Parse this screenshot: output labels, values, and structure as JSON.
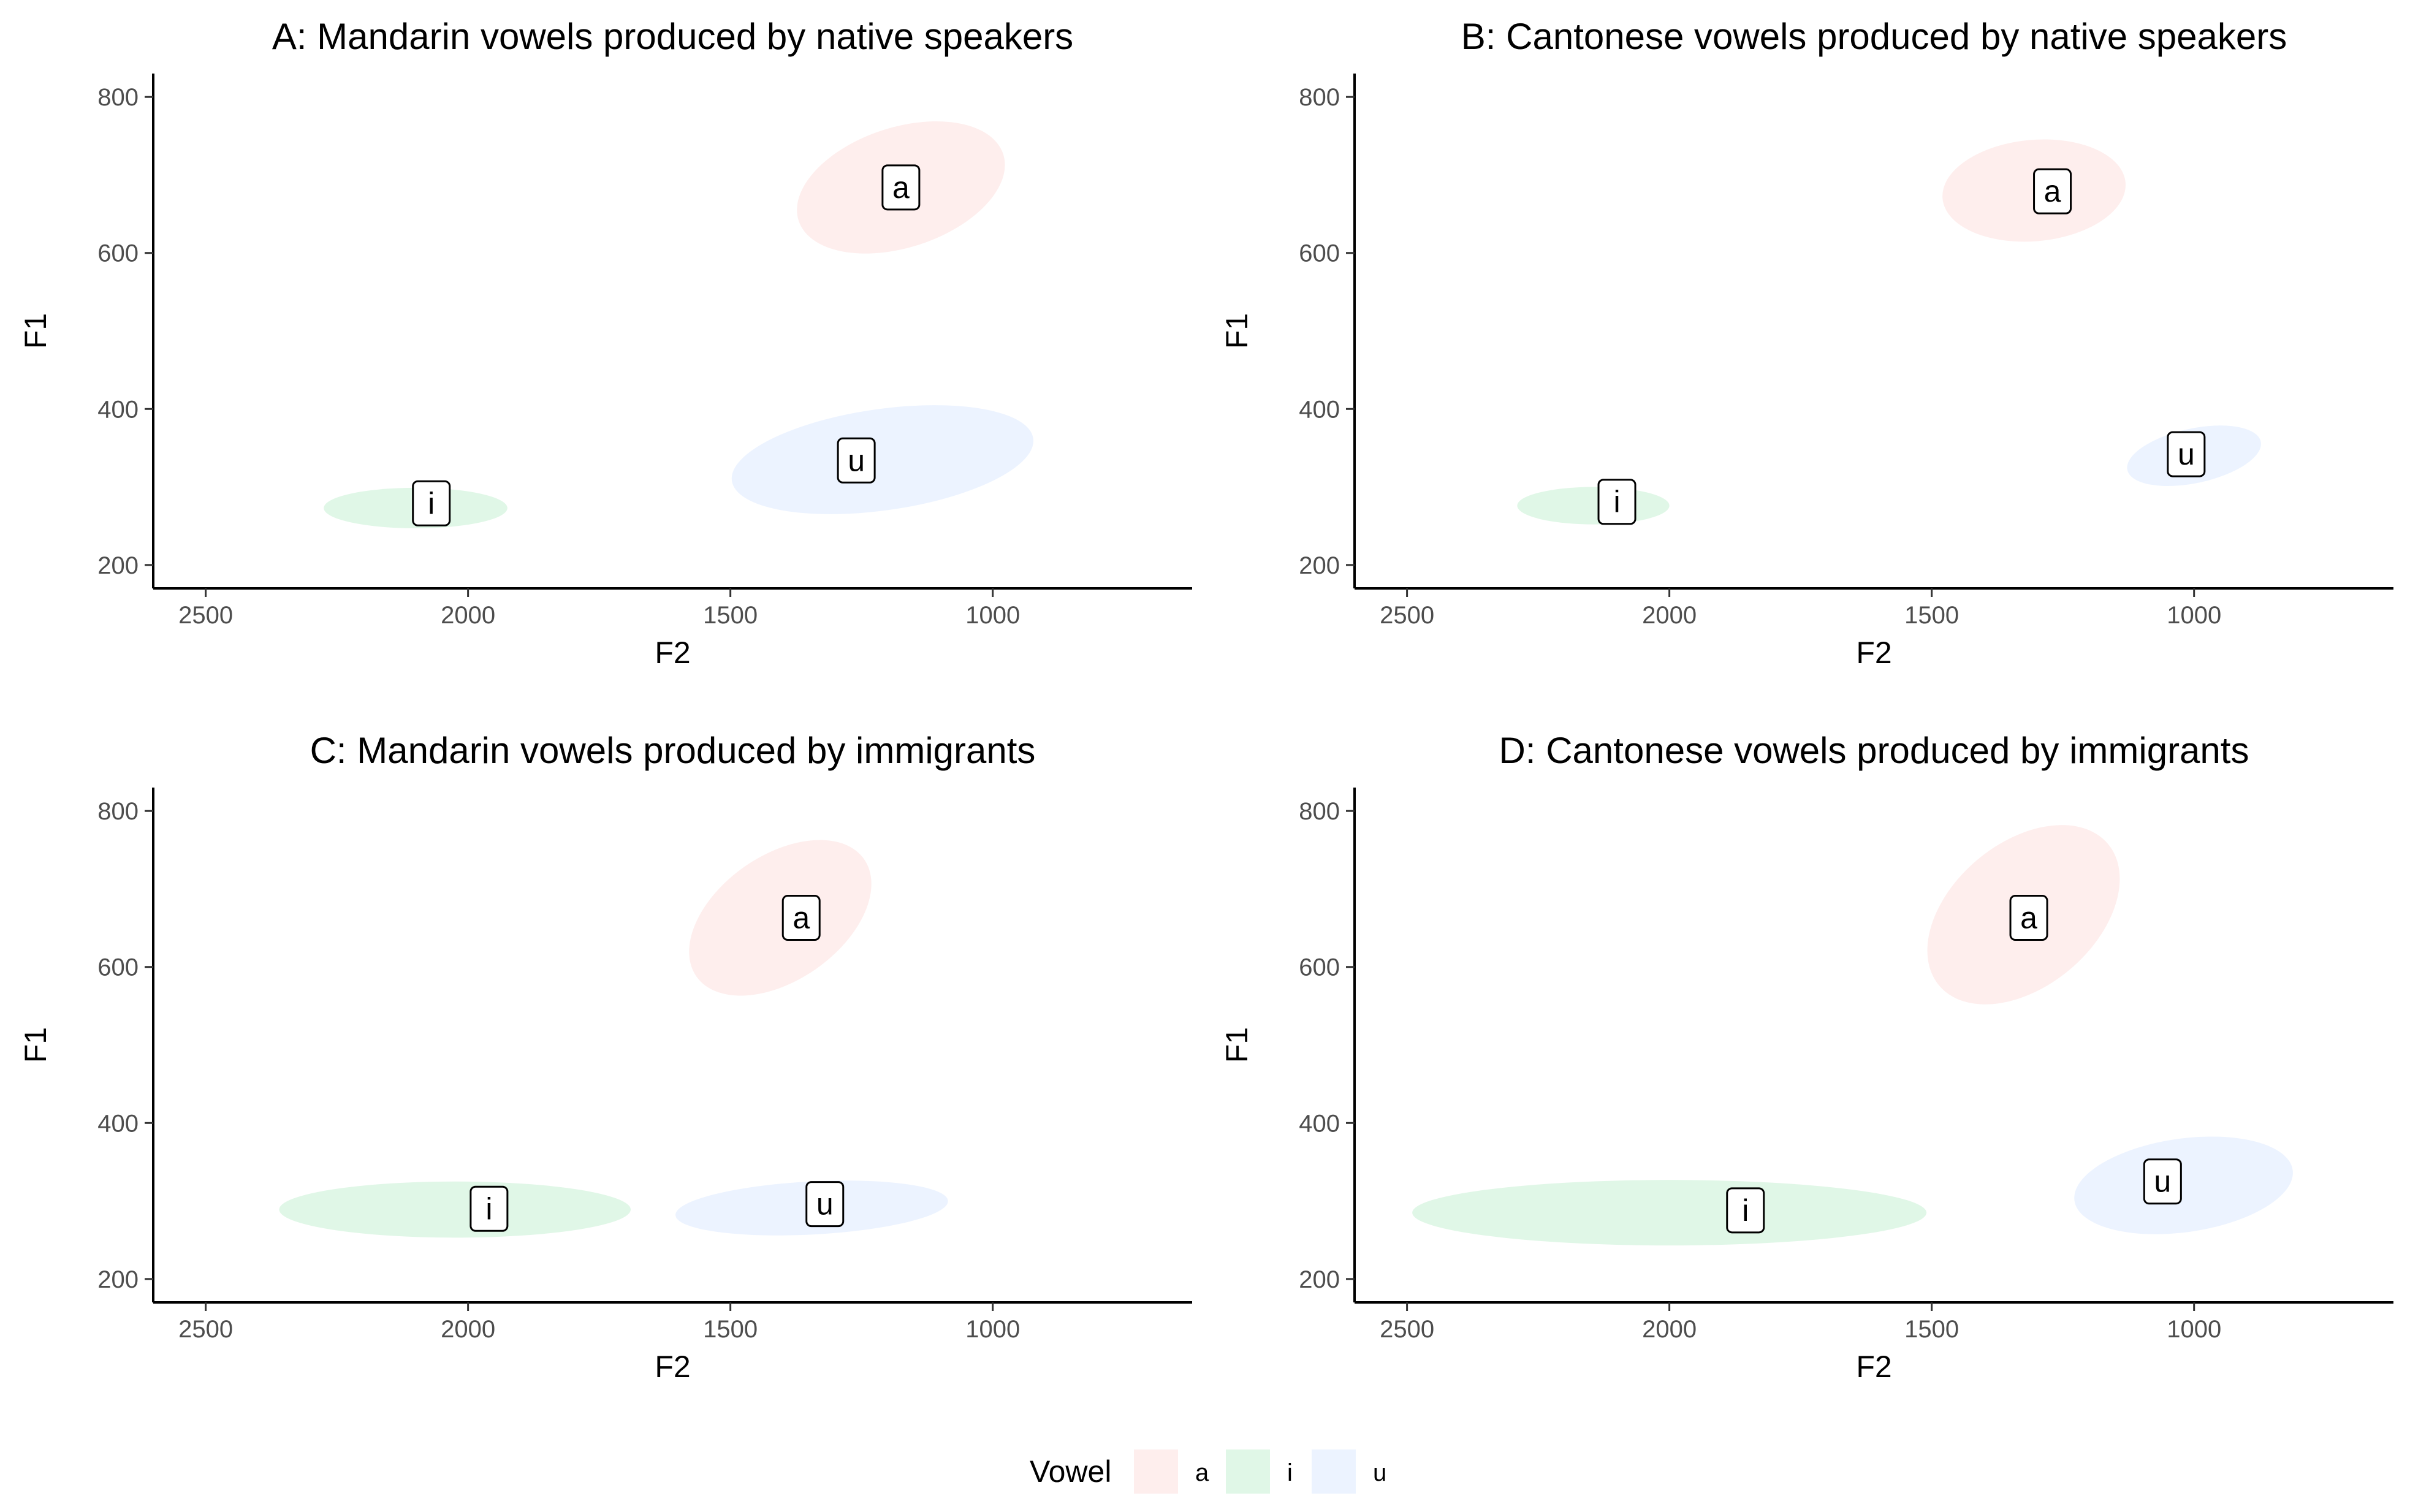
{
  "colors": {
    "a": "#F8766D",
    "i": "#00BA38",
    "u": "#619CFF"
  },
  "legend": {
    "title": "Vowel",
    "entries": [
      "a",
      "i",
      "u"
    ]
  },
  "chart_data": [
    {
      "type": "scatter",
      "title": "A: Mandarin vowels produced by native speakers",
      "xlabel": "F2",
      "ylabel": "F1",
      "xlim": [
        2600,
        620
      ],
      "ylim": [
        830,
        170
      ],
      "xticks": [
        2500,
        2000,
        1500,
        1000
      ],
      "yticks": [
        200,
        400,
        600,
        800
      ],
      "ellipses": [
        {
          "vowel": "a",
          "cx": 1175,
          "cy": 684,
          "rx": 205,
          "ry": 77,
          "angle": -18
        },
        {
          "vowel": "i",
          "cx": 2100,
          "cy": 273,
          "rx": 175,
          "ry": 26,
          "angle": 0
        },
        {
          "vowel": "u",
          "cx": 1210,
          "cy": 335,
          "rx": 290,
          "ry": 65,
          "angle": -8
        }
      ],
      "labels": [
        {
          "vowel": "a",
          "text": "a",
          "x": 1175,
          "y": 684
        },
        {
          "vowel": "i",
          "text": "i",
          "x": 2070,
          "y": 279
        },
        {
          "vowel": "u",
          "text": "u",
          "x": 1260,
          "y": 334
        }
      ]
    },
    {
      "type": "scatter",
      "title": "B: Cantonese vowels produced by native speakers",
      "xlabel": "F2",
      "ylabel": "F1",
      "xlim": [
        2600,
        620
      ],
      "ylim": [
        830,
        170
      ],
      "xticks": [
        2500,
        2000,
        1500,
        1000
      ],
      "yticks": [
        200,
        400,
        600,
        800
      ],
      "ellipses": [
        {
          "vowel": "a",
          "cx": 1305,
          "cy": 680,
          "rx": 175,
          "ry": 65,
          "angle": -5
        },
        {
          "vowel": "i",
          "cx": 2145,
          "cy": 276,
          "rx": 145,
          "ry": 24,
          "angle": 0
        },
        {
          "vowel": "u",
          "cx": 1000,
          "cy": 340,
          "rx": 130,
          "ry": 35,
          "angle": -12
        }
      ],
      "labels": [
        {
          "vowel": "a",
          "text": "a",
          "x": 1270,
          "y": 679
        },
        {
          "vowel": "i",
          "text": "i",
          "x": 2100,
          "y": 281
        },
        {
          "vowel": "u",
          "text": "u",
          "x": 1015,
          "y": 342
        }
      ]
    },
    {
      "type": "scatter",
      "title": "C: Mandarin vowels produced by immigrants",
      "xlabel": "F2",
      "ylabel": "F1",
      "xlim": [
        2600,
        620
      ],
      "ylim": [
        830,
        170
      ],
      "xticks": [
        2500,
        2000,
        1500,
        1000
      ],
      "yticks": [
        200,
        400,
        600,
        800
      ],
      "ellipses": [
        {
          "vowel": "a",
          "cx": 1405,
          "cy": 663,
          "rx": 195,
          "ry": 80,
          "angle": -35
        },
        {
          "vowel": "i",
          "cx": 2025,
          "cy": 289,
          "rx": 335,
          "ry": 36,
          "angle": 0
        },
        {
          "vowel": "u",
          "cx": 1345,
          "cy": 291,
          "rx": 260,
          "ry": 34,
          "angle": -3
        }
      ],
      "labels": [
        {
          "vowel": "a",
          "text": "a",
          "x": 1365,
          "y": 663
        },
        {
          "vowel": "i",
          "text": "i",
          "x": 1960,
          "y": 290
        },
        {
          "vowel": "u",
          "text": "u",
          "x": 1320,
          "y": 296
        }
      ]
    },
    {
      "type": "scatter",
      "title": "D: Cantonese vowels produced by immigrants",
      "xlabel": "F2",
      "ylabel": "F1",
      "xlim": [
        2600,
        620
      ],
      "ylim": [
        830,
        170
      ],
      "xticks": [
        2500,
        2000,
        1500,
        1000
      ],
      "yticks": [
        200,
        400,
        600,
        800
      ],
      "ellipses": [
        {
          "vowel": "a",
          "cx": 1325,
          "cy": 667,
          "rx": 210,
          "ry": 92,
          "angle": -40
        },
        {
          "vowel": "i",
          "cx": 2000,
          "cy": 285,
          "rx": 490,
          "ry": 42,
          "angle": 0
        },
        {
          "vowel": "u",
          "cx": 1020,
          "cy": 320,
          "rx": 210,
          "ry": 60,
          "angle": -8
        }
      ],
      "labels": [
        {
          "vowel": "a",
          "text": "a",
          "x": 1315,
          "y": 663
        },
        {
          "vowel": "i",
          "text": "i",
          "x": 1855,
          "y": 288
        },
        {
          "vowel": "u",
          "text": "u",
          "x": 1060,
          "y": 325
        }
      ]
    }
  ]
}
